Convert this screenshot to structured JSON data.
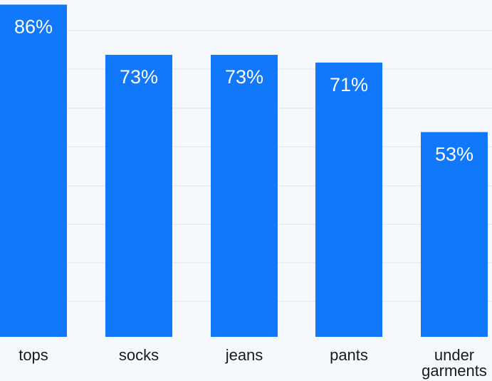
{
  "chart_data": {
    "type": "bar",
    "categories": [
      "tops",
      "socks",
      "jeans",
      "pants",
      "under garments"
    ],
    "category_lines": [
      [
        "tops"
      ],
      [
        "socks"
      ],
      [
        "jeans"
      ],
      [
        "pants"
      ],
      [
        "under",
        "garments"
      ]
    ],
    "values": [
      86,
      73,
      73,
      71,
      53
    ],
    "value_labels": [
      "86%",
      "73%",
      "73%",
      "71%",
      "53%"
    ],
    "title": "",
    "xlabel": "",
    "ylabel": "",
    "ylim": [
      0,
      100
    ],
    "grid": true,
    "legend": "none",
    "bar_color": "#1178fb",
    "label_color": "#ffffff",
    "background": "#f5f9fd"
  }
}
